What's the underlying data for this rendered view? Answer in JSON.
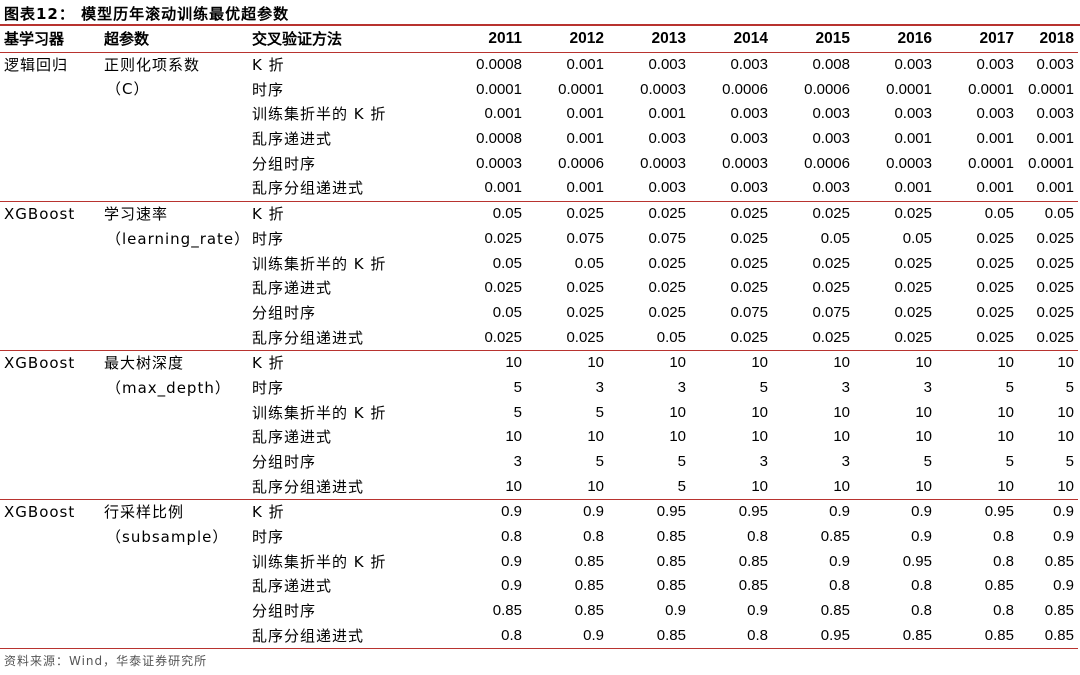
{
  "title": "图表12： 模型历年滚动训练最优超参数",
  "headers": {
    "learner": "基学习器",
    "param": "超参数",
    "method": "交叉验证方法",
    "years": [
      "2011",
      "2012",
      "2013",
      "2014",
      "2015",
      "2016",
      "2017",
      "2018"
    ]
  },
  "groups": [
    {
      "learner": "逻辑回归",
      "param_line1": "正则化项系数",
      "param_line2": "（C）",
      "rows": [
        {
          "method": "K 折",
          "values": [
            "0.0008",
            "0.001",
            "0.003",
            "0.003",
            "0.008",
            "0.003",
            "0.003",
            "0.003"
          ]
        },
        {
          "method": "时序",
          "values": [
            "0.0001",
            "0.0001",
            "0.0003",
            "0.0006",
            "0.0006",
            "0.0001",
            "0.0001",
            "0.0001"
          ]
        },
        {
          "method": "训练集折半的 K 折",
          "values": [
            "0.001",
            "0.001",
            "0.001",
            "0.003",
            "0.003",
            "0.003",
            "0.003",
            "0.003"
          ]
        },
        {
          "method": "乱序递进式",
          "values": [
            "0.0008",
            "0.001",
            "0.003",
            "0.003",
            "0.003",
            "0.001",
            "0.001",
            "0.001"
          ]
        },
        {
          "method": "分组时序",
          "values": [
            "0.0003",
            "0.0006",
            "0.0003",
            "0.0003",
            "0.0006",
            "0.0003",
            "0.0001",
            "0.0001"
          ]
        },
        {
          "method": "乱序分组递进式",
          "values": [
            "0.001",
            "0.001",
            "0.003",
            "0.003",
            "0.003",
            "0.001",
            "0.001",
            "0.001"
          ]
        }
      ]
    },
    {
      "learner": "XGBoost",
      "param_line1": "学习速率",
      "param_line2": "（learning_rate）",
      "rows": [
        {
          "method": "K 折",
          "values": [
            "0.05",
            "0.025",
            "0.025",
            "0.025",
            "0.025",
            "0.025",
            "0.05",
            "0.05"
          ]
        },
        {
          "method": "时序",
          "values": [
            "0.025",
            "0.075",
            "0.075",
            "0.025",
            "0.05",
            "0.05",
            "0.025",
            "0.025"
          ]
        },
        {
          "method": "训练集折半的 K 折",
          "values": [
            "0.05",
            "0.05",
            "0.025",
            "0.025",
            "0.025",
            "0.025",
            "0.025",
            "0.025"
          ]
        },
        {
          "method": "乱序递进式",
          "values": [
            "0.025",
            "0.025",
            "0.025",
            "0.025",
            "0.025",
            "0.025",
            "0.025",
            "0.025"
          ]
        },
        {
          "method": "分组时序",
          "values": [
            "0.05",
            "0.025",
            "0.025",
            "0.075",
            "0.075",
            "0.025",
            "0.025",
            "0.025"
          ]
        },
        {
          "method": "乱序分组递进式",
          "values": [
            "0.025",
            "0.025",
            "0.05",
            "0.025",
            "0.025",
            "0.025",
            "0.025",
            "0.025"
          ]
        }
      ]
    },
    {
      "learner": "XGBoost",
      "param_line1": "最大树深度",
      "param_line2": "（max_depth）",
      "rows": [
        {
          "method": "K 折",
          "values": [
            "10",
            "10",
            "10",
            "10",
            "10",
            "10",
            "10",
            "10"
          ]
        },
        {
          "method": "时序",
          "values": [
            "5",
            "3",
            "3",
            "5",
            "3",
            "3",
            "5",
            "5"
          ]
        },
        {
          "method": "训练集折半的 K 折",
          "values": [
            "5",
            "5",
            "10",
            "10",
            "10",
            "10",
            "10",
            "10"
          ]
        },
        {
          "method": "乱序递进式",
          "values": [
            "10",
            "10",
            "10",
            "10",
            "10",
            "10",
            "10",
            "10"
          ]
        },
        {
          "method": "分组时序",
          "values": [
            "3",
            "5",
            "5",
            "3",
            "3",
            "5",
            "5",
            "5"
          ]
        },
        {
          "method": "乱序分组递进式",
          "values": [
            "10",
            "10",
            "5",
            "10",
            "10",
            "10",
            "10",
            "10"
          ]
        }
      ]
    },
    {
      "learner": "XGBoost",
      "param_line1": "行采样比例",
      "param_line2": "（subsample）",
      "rows": [
        {
          "method": "K 折",
          "values": [
            "0.9",
            "0.9",
            "0.95",
            "0.95",
            "0.9",
            "0.9",
            "0.95",
            "0.9"
          ]
        },
        {
          "method": "时序",
          "values": [
            "0.8",
            "0.8",
            "0.85",
            "0.8",
            "0.85",
            "0.9",
            "0.8",
            "0.9"
          ]
        },
        {
          "method": "训练集折半的 K 折",
          "values": [
            "0.9",
            "0.85",
            "0.85",
            "0.85",
            "0.9",
            "0.95",
            "0.8",
            "0.85"
          ]
        },
        {
          "method": "乱序递进式",
          "values": [
            "0.9",
            "0.85",
            "0.85",
            "0.85",
            "0.8",
            "0.8",
            "0.85",
            "0.9"
          ]
        },
        {
          "method": "分组时序",
          "values": [
            "0.85",
            "0.85",
            "0.9",
            "0.9",
            "0.85",
            "0.8",
            "0.8",
            "0.85"
          ]
        },
        {
          "method": "乱序分组递进式",
          "values": [
            "0.8",
            "0.9",
            "0.85",
            "0.8",
            "0.95",
            "0.85",
            "0.85",
            "0.85"
          ]
        }
      ]
    }
  ],
  "source": "资料来源：Wind，华泰证券研究所",
  "colors": {
    "rule": "#b8332f"
  }
}
